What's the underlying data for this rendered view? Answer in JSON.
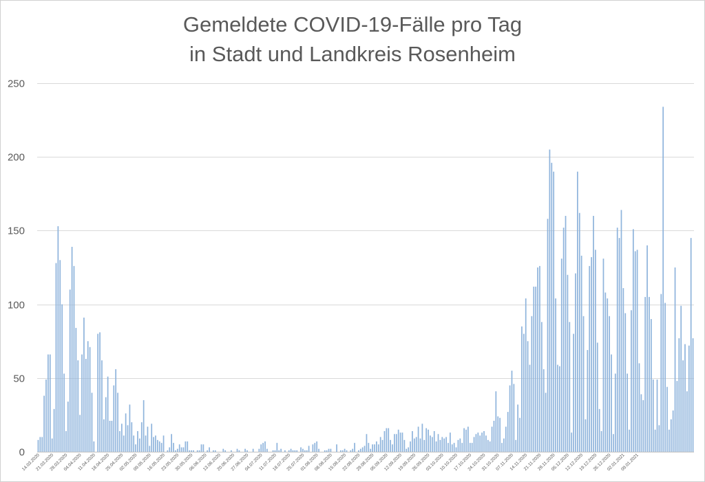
{
  "chart_data": {
    "type": "bar",
    "title_lines": [
      "Gemeldete COVID-19-Fälle pro Tag",
      "in Stadt und Landkreis Rosenheim"
    ],
    "xlabel": "",
    "ylabel": "",
    "ylim": [
      0,
      250
    ],
    "y_ticks": [
      0,
      50,
      100,
      150,
      200,
      250
    ],
    "grid": true,
    "legend": "none",
    "bar_color": "#8fb4dc",
    "start_date": "14.03.2020",
    "x_tick_labels": [
      "14.03.2020",
      "21.03.2020",
      "28.03.2020",
      "04.04.2020",
      "11.04.2020",
      "18.04.2020",
      "25.04.2020",
      "02.05.2020",
      "09.05.2020",
      "16.05.2020",
      "23.05.2020",
      "30.05.2020",
      "06.06.2020",
      "13.06.2020",
      "20.06.2020",
      "27.06.2020",
      "04.07.2020",
      "11.07.2020",
      "18.07.2020",
      "25.07.2020",
      "01.08.2020",
      "08.08.2020",
      "15.08.2020",
      "22.08.2020",
      "29.08.2020",
      "05.09.2020",
      "12.09.2020",
      "19.09.2020",
      "26.09.2020",
      "03.10.2020",
      "10.10.2020",
      "17.10.2020",
      "24.10.2020",
      "31.10.2020",
      "07.11.2020",
      "14.11.2020",
      "21.11.2020",
      "28.11.2020",
      "05.12.2020",
      "12.12.2020",
      "19.12.2020",
      "26.12.2020",
      "02.01.2021",
      "09.01.2021"
    ],
    "values": [
      8,
      10,
      10,
      38,
      49,
      66,
      66,
      9,
      29,
      128,
      153,
      130,
      100,
      53,
      14,
      34,
      110,
      139,
      126,
      84,
      62,
      25,
      66,
      91,
      63,
      75,
      71,
      40,
      7,
      0,
      80,
      81,
      62,
      22,
      37,
      51,
      21,
      21,
      45,
      56,
      40,
      14,
      19,
      11,
      26,
      18,
      32,
      20,
      11,
      5,
      14,
      9,
      20,
      35,
      11,
      17,
      4,
      19,
      10,
      11,
      8,
      7,
      6,
      11,
      0,
      1,
      3,
      12,
      6,
      1,
      2,
      5,
      3,
      3,
      7,
      7,
      1,
      1,
      1,
      0,
      1,
      1,
      5,
      5,
      0,
      1,
      3,
      0,
      1,
      1,
      0,
      0,
      0,
      2,
      1,
      0,
      0,
      1,
      0,
      0,
      2,
      1,
      0,
      0,
      2,
      1,
      0,
      0,
      2,
      0,
      0,
      2,
      5,
      6,
      7,
      2,
      0,
      0,
      1,
      1,
      6,
      1,
      2,
      0,
      1,
      0,
      1,
      2,
      1,
      1,
      1,
      0,
      3,
      2,
      1,
      1,
      4,
      0,
      5,
      6,
      7,
      2,
      0,
      0,
      1,
      1,
      2,
      2,
      0,
      0,
      5,
      0,
      1,
      1,
      2,
      1,
      0,
      1,
      2,
      6,
      0,
      1,
      2,
      3,
      4,
      12,
      6,
      2,
      5,
      5,
      7,
      5,
      10,
      8,
      14,
      16,
      16,
      8,
      5,
      12,
      12,
      15,
      13,
      13,
      8,
      2,
      3,
      7,
      14,
      9,
      10,
      17,
      9,
      19,
      8,
      16,
      15,
      11,
      10,
      14,
      7,
      12,
      8,
      10,
      9,
      10,
      6,
      13,
      5,
      6,
      3,
      8,
      9,
      6,
      16,
      15,
      17,
      6,
      6,
      10,
      12,
      13,
      11,
      13,
      14,
      11,
      8,
      7,
      17,
      21,
      41,
      24,
      23,
      6,
      9,
      17,
      27,
      45,
      55,
      46,
      8,
      32,
      23,
      85,
      80,
      104,
      75,
      59,
      92,
      112,
      112,
      125,
      126,
      88,
      56,
      40,
      158,
      205,
      196,
      190,
      104,
      59,
      58,
      131,
      152,
      160,
      120,
      88,
      13,
      80,
      121,
      190,
      162,
      133,
      92,
      22,
      69,
      126,
      132,
      160,
      137,
      74,
      29,
      14,
      131,
      108,
      104,
      92,
      66,
      12,
      53,
      152,
      145,
      164,
      111,
      94,
      53,
      15,
      96,
      151,
      136,
      137,
      60,
      39,
      35,
      105,
      140,
      105,
      90,
      49,
      15,
      49,
      18,
      107,
      234,
      101,
      44,
      15,
      22,
      28,
      125,
      48,
      77,
      99,
      62,
      73,
      41,
      72,
      145,
      77
    ]
  }
}
